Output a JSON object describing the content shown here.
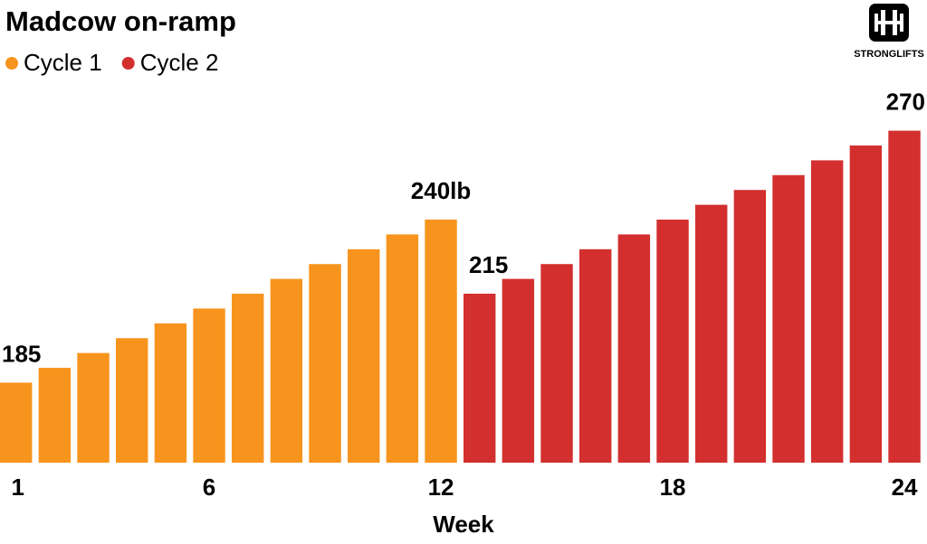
{
  "chart_data": {
    "type": "bar",
    "title": "Madcow on-ramp",
    "logo_text": "STRONGLIFTS",
    "xlabel": "Week",
    "categories": [
      "1",
      null,
      null,
      null,
      null,
      "6",
      null,
      null,
      null,
      null,
      null,
      "12",
      null,
      null,
      null,
      null,
      null,
      "18",
      null,
      null,
      null,
      null,
      null,
      "24"
    ],
    "series": [
      {
        "name": "Cycle 1",
        "color": "#f7941d",
        "values": [
          185,
          190,
          195,
          200,
          205,
          210,
          215,
          220,
          225,
          230,
          235,
          240,
          null,
          null,
          null,
          null,
          null,
          null,
          null,
          null,
          null,
          null,
          null,
          null
        ],
        "value_labels": [
          "185",
          null,
          null,
          null,
          null,
          null,
          null,
          null,
          null,
          null,
          null,
          "240lb",
          null,
          null,
          null,
          null,
          null,
          null,
          null,
          null,
          null,
          null,
          null,
          null
        ]
      },
      {
        "name": "Cycle 2",
        "color": "#d32f2f",
        "values": [
          null,
          null,
          null,
          null,
          null,
          null,
          null,
          null,
          null,
          null,
          null,
          null,
          215,
          220,
          225,
          230,
          235,
          240,
          245,
          250,
          255,
          260,
          265,
          270
        ],
        "value_labels": [
          null,
          null,
          null,
          null,
          null,
          null,
          null,
          null,
          null,
          null,
          null,
          null,
          "215",
          null,
          null,
          null,
          null,
          null,
          null,
          null,
          null,
          null,
          null,
          "270"
        ]
      }
    ],
    "ylim": [
      158,
      290
    ]
  }
}
